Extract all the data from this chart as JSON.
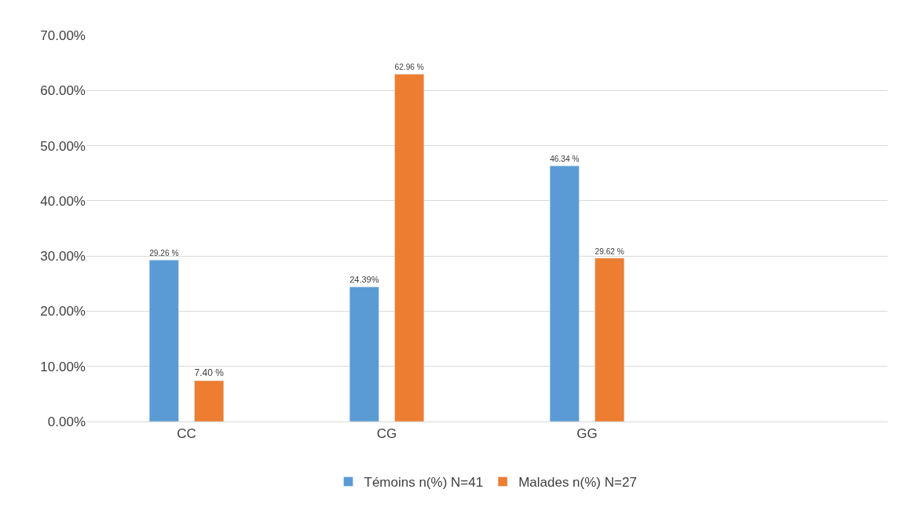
{
  "chart_data": {
    "type": "bar",
    "categories": [
      "CC",
      "CG",
      "GG",
      null
    ],
    "series": [
      {
        "name": "Témoins n(%) N=41",
        "color": "#5b9bd5",
        "values": [
          29.26,
          24.39,
          46.34,
          null
        ],
        "value_labels": [
          "29.26 %",
          "24.39%",
          "46.34 %",
          null
        ]
      },
      {
        "name": "Malades n(%) N=27",
        "color": "#ed7d31",
        "values": [
          7.4,
          62.96,
          29.62,
          null
        ],
        "value_labels": [
          "7.40 %",
          "62.96 %",
          "29.62 %",
          null
        ]
      }
    ],
    "ylim": [
      0,
      70
    ],
    "yticks": [
      {
        "value": 0,
        "label": "0.00%"
      },
      {
        "value": 10,
        "label": "10.00%"
      },
      {
        "value": 20,
        "label": "20.00%"
      },
      {
        "value": 30,
        "label": "30.00%"
      },
      {
        "value": 40,
        "label": "40.00%"
      },
      {
        "value": 50,
        "label": "50.00%"
      },
      {
        "value": 60,
        "label": "60.00%"
      },
      {
        "value": 70,
        "label": "70.00%"
      }
    ],
    "grid": "y",
    "legend": "bottom"
  }
}
